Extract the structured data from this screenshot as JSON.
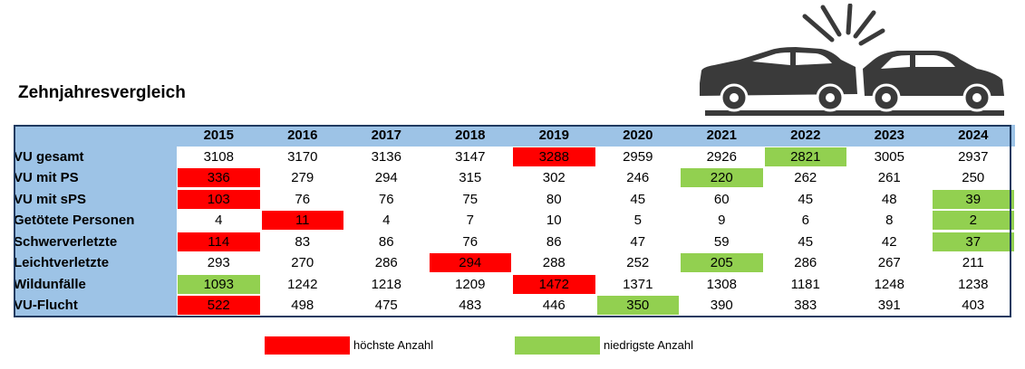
{
  "chart_data": {
    "type": "table",
    "title": "Zehnjahresvergleich",
    "years": [
      "2015",
      "2016",
      "2017",
      "2018",
      "2019",
      "2020",
      "2021",
      "2022",
      "2023",
      "2024"
    ],
    "rows": [
      {
        "label": "VU gesamt",
        "values": [
          3108,
          3170,
          3136,
          3147,
          3288,
          2959,
          2926,
          2821,
          3005,
          2937
        ],
        "highlights": [
          "",
          "",
          "",
          "",
          "red",
          "",
          "",
          "green",
          "",
          ""
        ]
      },
      {
        "label": "VU mit PS",
        "values": [
          336,
          279,
          294,
          315,
          302,
          246,
          220,
          262,
          261,
          250
        ],
        "highlights": [
          "red",
          "",
          "",
          "",
          "",
          "",
          "green",
          "",
          "",
          ""
        ]
      },
      {
        "label": "VU mit sPS",
        "values": [
          103,
          76,
          76,
          75,
          80,
          45,
          60,
          45,
          48,
          39
        ],
        "highlights": [
          "red",
          "",
          "",
          "",
          "",
          "",
          "",
          "",
          "",
          "green"
        ]
      },
      {
        "label": "Getötete Personen",
        "values": [
          4,
          11,
          4,
          7,
          10,
          5,
          9,
          6,
          8,
          2
        ],
        "highlights": [
          "",
          "red",
          "",
          "",
          "",
          "",
          "",
          "",
          "",
          "green"
        ]
      },
      {
        "label": "Schwerverletzte",
        "values": [
          114,
          83,
          86,
          76,
          86,
          47,
          59,
          45,
          42,
          37
        ],
        "highlights": [
          "red",
          "",
          "",
          "",
          "",
          "",
          "",
          "",
          "",
          "green"
        ]
      },
      {
        "label": "Leichtverletzte",
        "values": [
          293,
          270,
          286,
          294,
          288,
          252,
          205,
          286,
          267,
          211
        ],
        "highlights": [
          "",
          "",
          "",
          "red",
          "",
          "",
          "green",
          "",
          "",
          ""
        ]
      },
      {
        "label": "Wildunfälle",
        "values": [
          1093,
          1242,
          1218,
          1209,
          1472,
          1371,
          1308,
          1181,
          1248,
          1238
        ],
        "highlights": [
          "green",
          "",
          "",
          "",
          "red",
          "",
          "",
          "",
          "",
          ""
        ]
      },
      {
        "label": "VU-Flucht",
        "values": [
          522,
          498,
          475,
          483,
          446,
          350,
          390,
          383,
          391,
          403
        ],
        "highlights": [
          "red",
          "",
          "",
          "",
          "",
          "green",
          "",
          "",
          "",
          ""
        ]
      }
    ],
    "legend": [
      {
        "label": "höchste Anzahl",
        "color": "#ff0000"
      },
      {
        "label": "niedrigste Anzahl",
        "color": "#92d050"
      }
    ]
  },
  "colors": {
    "header": "#9dc3e6",
    "highest": "#ff0000",
    "lowest": "#92d050",
    "frame": "#1f3a60"
  },
  "illustration": {
    "icon": "car-crash-icon"
  }
}
